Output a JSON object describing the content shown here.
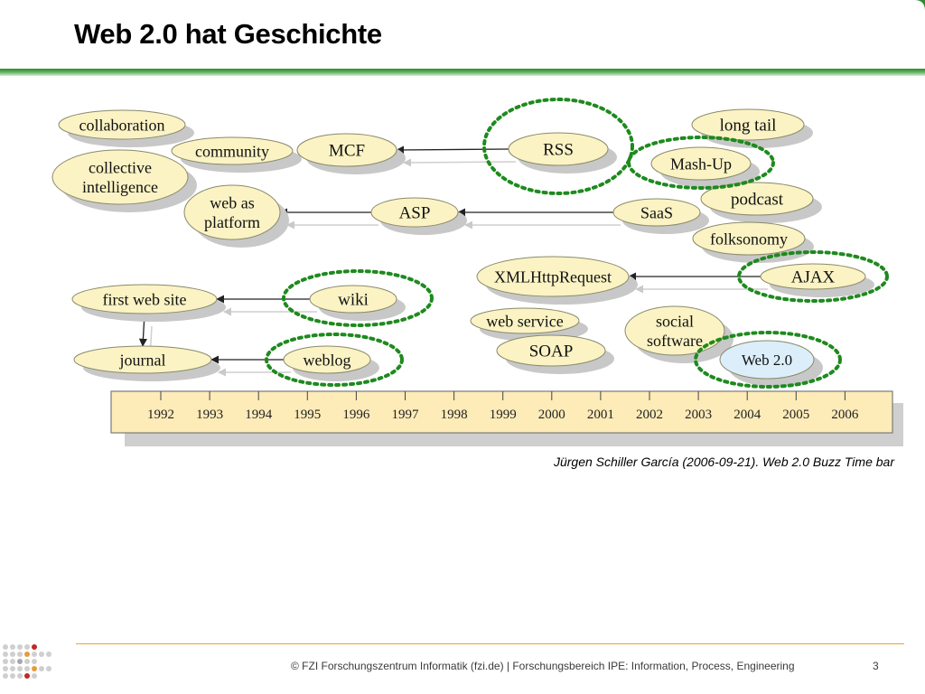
{
  "slide": {
    "title": "Web 2.0 hat Geschichte",
    "caption": "Jürgen Schiller García (2006-09-21). Web 2.0 Buzz Time bar",
    "footer": "© FZI Forschungszentrum Informatik (fzi.de) |  Forschungsbereich IPE: Information, Process, Engineering",
    "page_number": "3"
  },
  "colors": {
    "accent_green": "#2f8a2f",
    "bubble_fill": "#fbf3c4",
    "bubble_highlight": "#dbeefa",
    "highlight_ring": "#1e8a1e",
    "timeline_fill": "#fdebb8",
    "footer_line": "#e8a33a"
  },
  "diagram": {
    "timeline_years": [
      "1992",
      "1993",
      "1994",
      "1995",
      "1996",
      "1997",
      "1998",
      "1999",
      "2000",
      "2001",
      "2002",
      "2003",
      "2004",
      "2005",
      "2006"
    ],
    "nodes": [
      {
        "id": "collaboration",
        "lines": [
          "collaboration"
        ]
      },
      {
        "id": "community",
        "lines": [
          "community"
        ]
      },
      {
        "id": "collective-intelligence",
        "lines": [
          "collective",
          "intelligence"
        ]
      },
      {
        "id": "mcf",
        "lines": [
          "MCF"
        ]
      },
      {
        "id": "rss",
        "lines": [
          "RSS"
        ],
        "highlighted": true
      },
      {
        "id": "long-tail",
        "lines": [
          "long tail"
        ]
      },
      {
        "id": "mash-up",
        "lines": [
          "Mash-Up"
        ],
        "highlighted": true
      },
      {
        "id": "podcast",
        "lines": [
          "podcast"
        ]
      },
      {
        "id": "web-as-platform",
        "lines": [
          "web as",
          "platform"
        ]
      },
      {
        "id": "asp",
        "lines": [
          "ASP"
        ]
      },
      {
        "id": "saas",
        "lines": [
          "SaaS"
        ]
      },
      {
        "id": "folksonomy",
        "lines": [
          "folksonomy"
        ]
      },
      {
        "id": "xmlhttprequest",
        "lines": [
          "XMLHttpRequest"
        ]
      },
      {
        "id": "ajax",
        "lines": [
          "AJAX"
        ],
        "highlighted": true
      },
      {
        "id": "first-web-site",
        "lines": [
          "first web site"
        ]
      },
      {
        "id": "wiki",
        "lines": [
          "wiki"
        ],
        "highlighted": true
      },
      {
        "id": "web-service",
        "lines": [
          "web service"
        ]
      },
      {
        "id": "social-software",
        "lines": [
          "social",
          "software"
        ]
      },
      {
        "id": "soap",
        "lines": [
          "SOAP"
        ]
      },
      {
        "id": "journal",
        "lines": [
          "journal"
        ]
      },
      {
        "id": "weblog",
        "lines": [
          "weblog"
        ],
        "highlighted": true
      },
      {
        "id": "web-2-0",
        "lines": [
          "Web 2.0"
        ],
        "highlighted": true
      }
    ],
    "edges": [
      {
        "from": "rss",
        "to": "mcf"
      },
      {
        "from": "asp",
        "to": "web-as-platform"
      },
      {
        "from": "saas",
        "to": "asp"
      },
      {
        "from": "ajax",
        "to": "xmlhttprequest"
      },
      {
        "from": "wiki",
        "to": "first-web-site"
      },
      {
        "from": "weblog",
        "to": "journal"
      },
      {
        "from": "first-web-site",
        "to": "journal"
      }
    ]
  }
}
